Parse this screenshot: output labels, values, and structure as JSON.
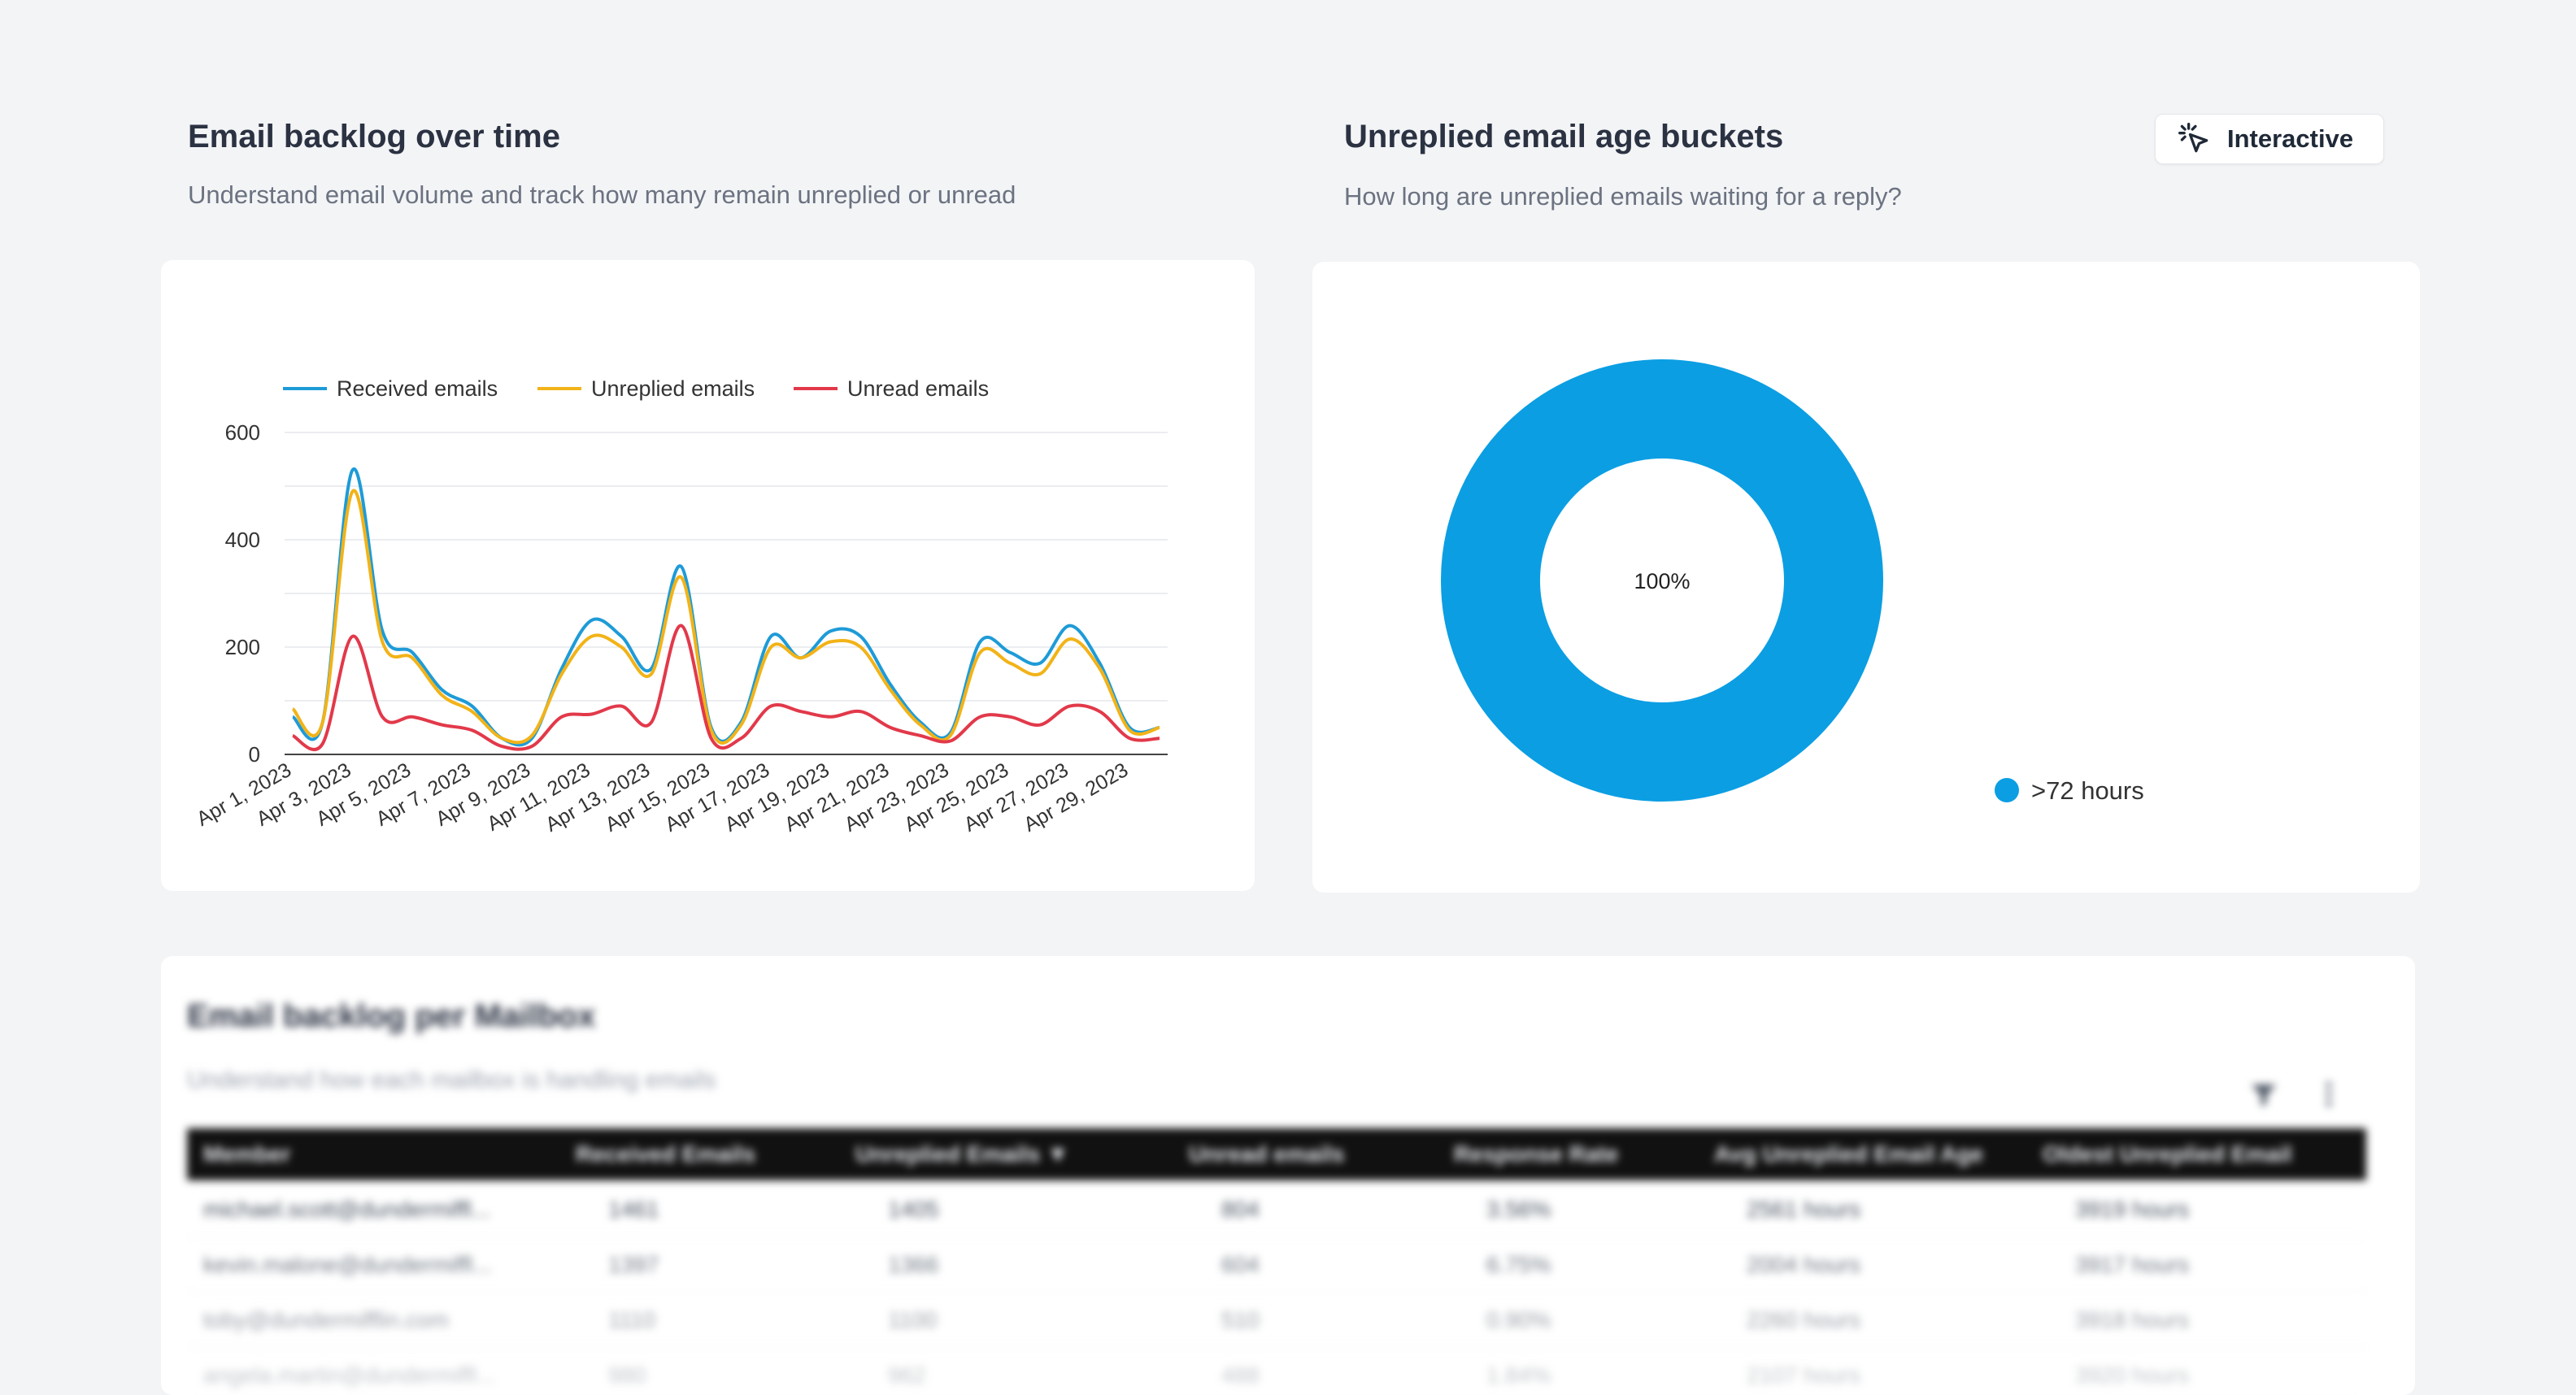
{
  "line_section": {
    "title": "Email backlog over time",
    "subtitle": "Understand email volume and track how many remain unreplied or unread"
  },
  "donut_section": {
    "title": "Unreplied email age buckets",
    "subtitle": "How long are unreplied emails waiting for a reply?",
    "interactive_label": "Interactive"
  },
  "table_section": {
    "title": "Email backlog per Mailbox",
    "subtitle": "Understand how each mailbox is handling emails",
    "columns": [
      "Member",
      "Received Emails",
      "Unreplied Emails ▼",
      "Unread emails",
      "Response Rate",
      "Avg Unreplied Email Age",
      "Oldest Unreplied Email"
    ],
    "rows": [
      [
        "michael.scott@dundermiffl...",
        "1461",
        "1405",
        "804",
        "3.56%",
        "2561 hours",
        "3919 hours"
      ],
      [
        "kevin.malone@dundermiffl...",
        "1397",
        "1366",
        "604",
        "6.75%",
        "2004 hours",
        "3917 hours"
      ],
      [
        "toby@dundermifflin.com",
        "1110",
        "1100",
        "510",
        "0.90%",
        "2260 hours",
        "3918 hours"
      ],
      [
        "angela.martin@dundermiffl...",
        "980",
        "962",
        "488",
        "1.84%",
        "2107 hours",
        "3920 hours"
      ]
    ]
  },
  "colors": {
    "received": "#1e9bd7",
    "unreplied": "#f2b318",
    "unread": "#e2394a",
    "donut": "#0b9ee3"
  },
  "chart_data": [
    {
      "type": "line",
      "title": "",
      "xlabel": "",
      "ylabel": "",
      "ylim": [
        0,
        600
      ],
      "yticks": [
        0,
        200,
        400,
        600
      ],
      "grid": true,
      "legend": "top-left",
      "x": [
        "Apr 1, 2023",
        "Apr 2, 2023",
        "Apr 3, 2023",
        "Apr 4, 2023",
        "Apr 5, 2023",
        "Apr 6, 2023",
        "Apr 7, 2023",
        "Apr 8, 2023",
        "Apr 9, 2023",
        "Apr 10, 2023",
        "Apr 11, 2023",
        "Apr 12, 2023",
        "Apr 13, 2023",
        "Apr 14, 2023",
        "Apr 15, 2023",
        "Apr 16, 2023",
        "Apr 17, 2023",
        "Apr 18, 2023",
        "Apr 19, 2023",
        "Apr 20, 2023",
        "Apr 21, 2023",
        "Apr 22, 2023",
        "Apr 23, 2023",
        "Apr 24, 2023",
        "Apr 25, 2023",
        "Apr 26, 2023",
        "Apr 27, 2023",
        "Apr 28, 2023",
        "Apr 29, 2023",
        "Apr 30, 2023"
      ],
      "xtick_labels": [
        "Apr 1, 2023",
        "Apr 3, 2023",
        "Apr 5, 2023",
        "Apr 7, 2023",
        "Apr 9, 2023",
        "Apr 11, 2023",
        "Apr 13, 2023",
        "Apr 15, 2023",
        "Apr 17, 2023",
        "Apr 19, 2023",
        "Apr 21, 2023",
        "Apr 23, 2023",
        "Apr 25, 2023",
        "Apr 27, 2023",
        "Apr 29, 2023"
      ],
      "series": [
        {
          "name": "Received emails",
          "values": [
            70,
            60,
            530,
            230,
            190,
            120,
            90,
            30,
            30,
            160,
            250,
            220,
            160,
            350,
            50,
            60,
            220,
            180,
            230,
            220,
            130,
            60,
            40,
            210,
            190,
            170,
            240,
            170,
            50,
            50
          ]
        },
        {
          "name": "Unreplied emails",
          "values": [
            85,
            60,
            490,
            210,
            180,
            110,
            80,
            30,
            35,
            150,
            220,
            200,
            150,
            330,
            45,
            55,
            200,
            180,
            210,
            200,
            120,
            55,
            35,
            190,
            170,
            150,
            215,
            160,
            45,
            50
          ]
        },
        {
          "name": "Unread emails",
          "values": [
            35,
            20,
            220,
            70,
            70,
            55,
            45,
            15,
            15,
            70,
            75,
            90,
            60,
            240,
            30,
            30,
            90,
            80,
            70,
            80,
            50,
            35,
            25,
            70,
            70,
            55,
            90,
            80,
            30,
            30
          ]
        }
      ]
    },
    {
      "type": "pie",
      "title": "",
      "legend": "bottom-right",
      "categories": [
        ">72 hours"
      ],
      "values": [
        100
      ],
      "data_labels": [
        "100%"
      ]
    }
  ]
}
